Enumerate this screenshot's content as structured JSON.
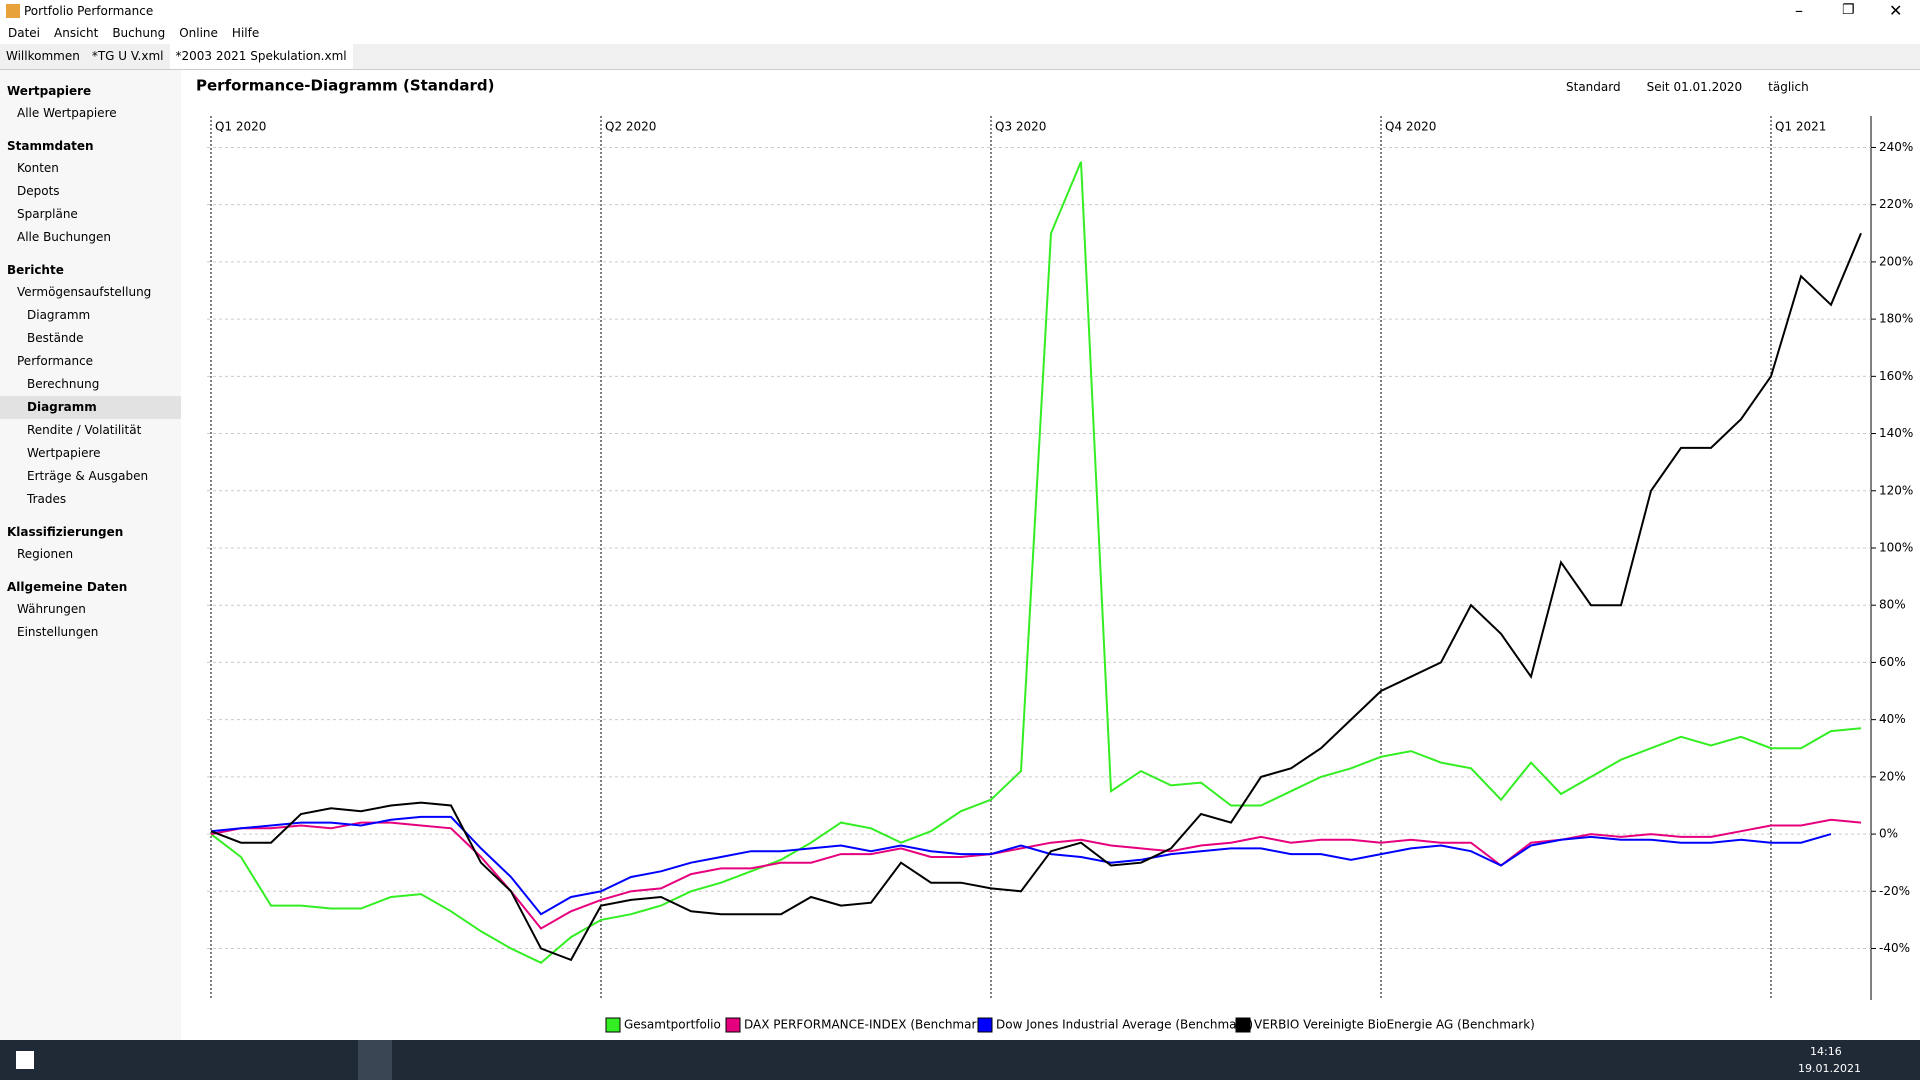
{
  "app_title": "Portfolio Performance",
  "menu": [
    "Datei",
    "Ansicht",
    "Buchung",
    "Online",
    "Hilfe"
  ],
  "tabs": [
    "Willkommen",
    "*TG U V.xml",
    "*2003 2021 Spekulation.xml"
  ],
  "sidebar": [
    {
      "heading": "Wertpapiere",
      "items": [
        "Alle Wertpapiere"
      ]
    },
    {
      "heading": "Stammdaten",
      "items": [
        "Konten",
        "Depots",
        "Sparpläne",
        "Alle Buchungen"
      ]
    },
    {
      "heading": "Berichte",
      "items": [
        "Vermögensaufstellung",
        "Diagramm",
        "Bestände",
        "Performance",
        "Berechnung",
        "Diagramm",
        "Rendite / Volatilität",
        "Wertpapiere",
        "Erträge & Ausgaben",
        "Trades"
      ]
    },
    {
      "heading": "Klassifizierungen",
      "items": [
        "Regionen"
      ]
    },
    {
      "heading": "Allgemeine Daten",
      "items": [
        "Währungen",
        "Einstellungen"
      ]
    }
  ],
  "toolbar": [
    "Standard",
    "Seit 01.01.2020",
    "täglich"
  ],
  "taskbar": {
    "time": "14:16",
    "date": "19.01.2021"
  },
  "chart_data": {
    "type": "line",
    "title": "Performance-Diagramm (Standard)",
    "xlim": [
      0,
      55
    ],
    "xticks": [
      {
        "value": 0,
        "label": "Q1 2020"
      },
      {
        "value": 13,
        "label": "Q2 2020"
      },
      {
        "value": 26,
        "label": "Q3 2020"
      },
      {
        "value": 39,
        "label": "Q4 2020"
      },
      {
        "value": 52,
        "label": "Q1 2021"
      }
    ],
    "ylim": [
      -58,
      251
    ],
    "yticks": [
      {
        "value": -40,
        "label": "-40%"
      },
      {
        "value": -20,
        "label": "-20%"
      },
      {
        "value": 0,
        "label": "0%"
      },
      {
        "value": 20,
        "label": "20%"
      },
      {
        "value": 40,
        "label": "40%"
      },
      {
        "value": 60,
        "label": "60%"
      },
      {
        "value": 80,
        "label": "80%"
      },
      {
        "value": 100,
        "label": "100%"
      },
      {
        "value": 120,
        "label": "120%"
      },
      {
        "value": 140,
        "label": "140%"
      },
      {
        "value": 160,
        "label": "160%"
      },
      {
        "value": 180,
        "label": "180%"
      },
      {
        "value": 200,
        "label": "200%"
      },
      {
        "value": 220,
        "label": "220%"
      },
      {
        "value": 240,
        "label": "240%"
      }
    ],
    "grid": true,
    "series": [
      {
        "name": "Gesamtportfolio",
        "color": "#33ee22",
        "values": [
          0,
          -8,
          -25,
          -25,
          -26,
          -26,
          -22,
          -21,
          -27,
          -34,
          -40,
          -45,
          -36,
          -30,
          -28,
          -25,
          -20,
          -17,
          -13,
          -9,
          -3,
          4,
          2,
          -3,
          1,
          8,
          12,
          22,
          210,
          235,
          15,
          22,
          17,
          18,
          10,
          10,
          15,
          20,
          23,
          27,
          29,
          25,
          23,
          12,
          25,
          14,
          20,
          26,
          30,
          34,
          31,
          34,
          30,
          30,
          36,
          37
        ]
      },
      {
        "name": "DAX PERFORMANCE-INDEX (Benchmark)",
        "color": "#e6007e",
        "values": [
          0,
          2,
          2,
          3,
          2,
          4,
          4,
          3,
          2,
          -8,
          -20,
          -33,
          -27,
          -23,
          -20,
          -19,
          -14,
          -12,
          -12,
          -10,
          -10,
          -7,
          -7,
          -5,
          -8,
          -8,
          -7,
          -5,
          -3,
          -2,
          -4,
          -5,
          -6,
          -4,
          -3,
          -1,
          -3,
          -2,
          -2,
          -3,
          -2,
          -3,
          -3,
          -11,
          -3,
          -2,
          0,
          -1,
          0,
          -1,
          -1,
          1,
          3,
          3,
          5,
          4
        ]
      },
      {
        "name": "Dow Jones Industrial Average (Benchmark)",
        "color": "#0000ff",
        "values": [
          1,
          2,
          3,
          4,
          4,
          3,
          5,
          6,
          6,
          -5,
          -15,
          -28,
          -22,
          -20,
          -15,
          -13,
          -10,
          -8,
          -6,
          -6,
          -5,
          -4,
          -6,
          -4,
          -6,
          -7,
          -7,
          -4,
          -7,
          -8,
          -10,
          -9,
          -7,
          -6,
          -5,
          -5,
          -7,
          -7,
          -9,
          -7,
          -5,
          -4,
          -6,
          -11,
          -4,
          -2,
          -1,
          -2,
          -2,
          -3,
          -3,
          -2,
          -3,
          -3,
          0,
          null
        ]
      },
      {
        "name": "VERBIO Vereinigte BioEnergie AG (Benchmark)",
        "color": "#000000",
        "values": [
          1,
          -3,
          -3,
          7,
          9,
          8,
          10,
          11,
          10,
          -10,
          -20,
          -40,
          -44,
          -25,
          -23,
          -22,
          -27,
          -28,
          -28,
          -28,
          -22,
          -25,
          -24,
          -10,
          -17,
          -17,
          -19,
          -20,
          -6,
          -3,
          -11,
          -10,
          -5,
          7,
          4,
          20,
          23,
          30,
          40,
          50,
          55,
          60,
          80,
          70,
          55,
          95,
          80,
          80,
          120,
          135,
          135,
          145,
          160,
          195,
          185,
          210
        ]
      }
    ]
  }
}
